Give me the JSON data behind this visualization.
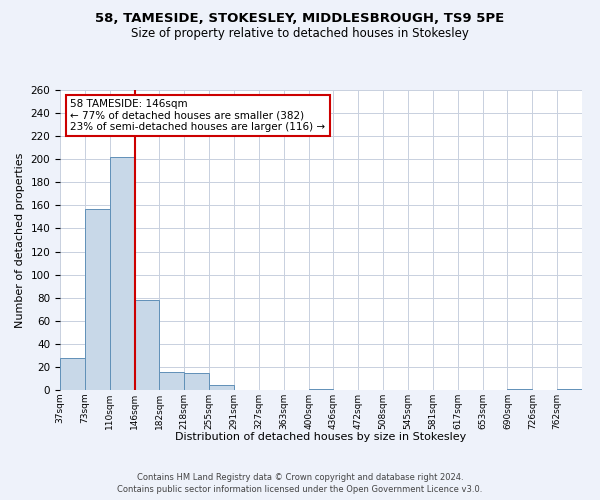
{
  "title": "58, TAMESIDE, STOKESLEY, MIDDLESBROUGH, TS9 5PE",
  "subtitle": "Size of property relative to detached houses in Stokesley",
  "xlabel": "Distribution of detached houses by size in Stokesley",
  "ylabel": "Number of detached properties",
  "bin_labels": [
    "37sqm",
    "73sqm",
    "110sqm",
    "146sqm",
    "182sqm",
    "218sqm",
    "255sqm",
    "291sqm",
    "327sqm",
    "363sqm",
    "400sqm",
    "436sqm",
    "472sqm",
    "508sqm",
    "545sqm",
    "581sqm",
    "617sqm",
    "653sqm",
    "690sqm",
    "726sqm",
    "762sqm"
  ],
  "bar_values": [
    28,
    157,
    202,
    78,
    16,
    15,
    4,
    0,
    0,
    0,
    1,
    0,
    0,
    0,
    0,
    0,
    0,
    0,
    1,
    0,
    1
  ],
  "bar_color": "#c8d8e8",
  "bar_edgecolor": "#6090b8",
  "vline_x": 3,
  "vline_color": "#cc0000",
  "annotation_title": "58 TAMESIDE: 146sqm",
  "annotation_line1": "← 77% of detached houses are smaller (382)",
  "annotation_line2": "23% of semi-detached houses are larger (116) →",
  "annotation_box_edgecolor": "#cc0000",
  "ylim": [
    0,
    260
  ],
  "yticks": [
    0,
    20,
    40,
    60,
    80,
    100,
    120,
    140,
    160,
    180,
    200,
    220,
    240,
    260
  ],
  "footer1": "Contains HM Land Registry data © Crown copyright and database right 2024.",
  "footer2": "Contains public sector information licensed under the Open Government Licence v3.0.",
  "bg_color": "#eef2fa",
  "plot_bg_color": "#ffffff",
  "grid_color": "#c8d0de"
}
